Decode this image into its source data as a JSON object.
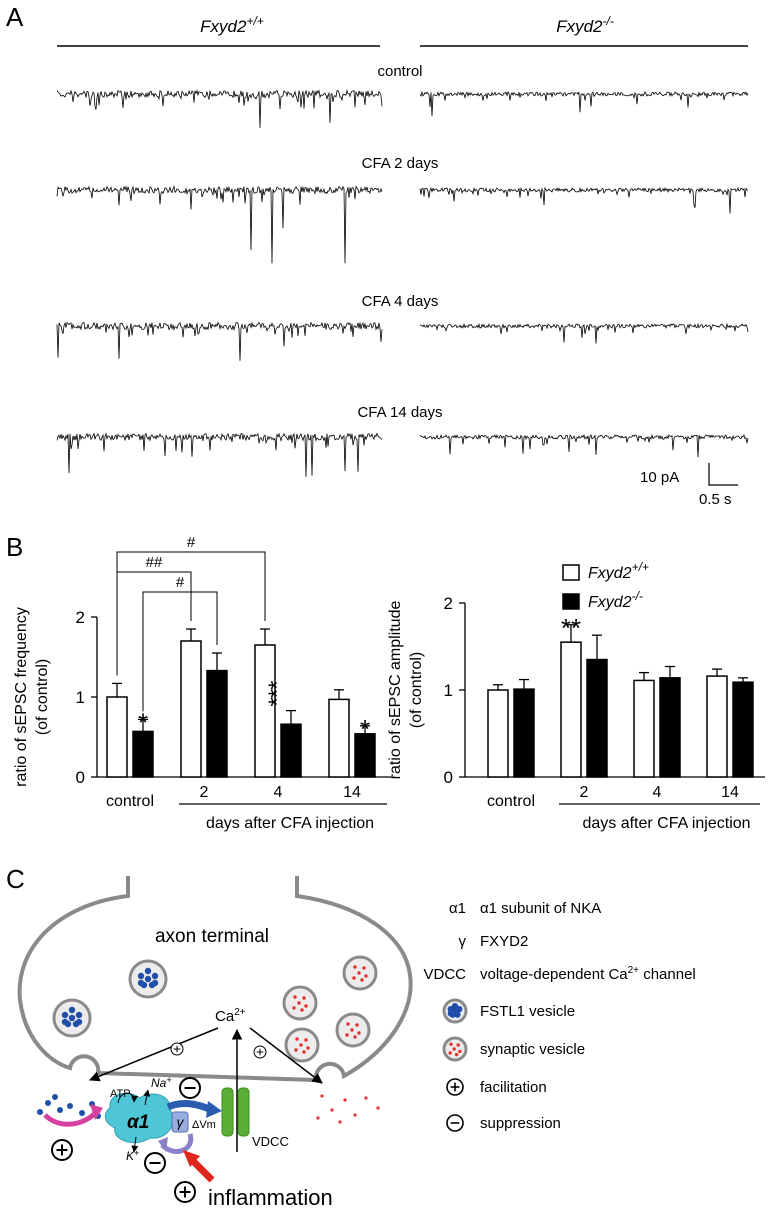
{
  "panel_a": {
    "label": "A",
    "genotypes": [
      {
        "name": "Fxyd2",
        "superscript": "+/+"
      },
      {
        "name": "Fxyd2",
        "superscript": "-/-"
      }
    ],
    "conditions": [
      "control",
      "CFA 2 days",
      "CFA 4 days",
      "CFA 14 days"
    ],
    "scale_bar": {
      "current": "10 pA",
      "time": "0.5 s"
    }
  },
  "panel_b_label": "B",
  "chart_data": [
    {
      "type": "bar",
      "y_label": [
        "ratio of sEPSC frequency",
        "(of control)"
      ],
      "categories": [
        "control",
        "2",
        "4",
        "14"
      ],
      "x_label": "days after CFA injection",
      "ylim": [
        0,
        2
      ],
      "yticks": [
        0,
        1,
        2
      ],
      "series": [
        {
          "color": "#ffffff",
          "values": [
            1.0,
            1.7,
            1.65,
            0.97
          ],
          "errors": [
            0.17,
            0.15,
            0.2,
            0.12
          ]
        },
        {
          "color": "#000000",
          "values": [
            0.57,
            1.33,
            0.66,
            0.54
          ],
          "errors": [
            0.15,
            0.22,
            0.17,
            0.1
          ],
          "significance": [
            "*",
            null,
            "***",
            "*"
          ]
        }
      ],
      "brackets": [
        {
          "label": "#",
          "from": [
            0,
            0
          ],
          "to": [
            0,
            2
          ]
        },
        {
          "label": "##",
          "from": [
            0,
            0
          ],
          "to": [
            0,
            1
          ]
        },
        {
          "label": "#",
          "from": [
            1,
            0
          ],
          "to": [
            1,
            1
          ]
        }
      ]
    },
    {
      "type": "bar",
      "y_label": [
        "ratio of sEPSC amplitude",
        "(of control)"
      ],
      "categories": [
        "control",
        "2",
        "4",
        "14"
      ],
      "x_label": "days after CFA injection",
      "ylim": [
        0,
        2
      ],
      "yticks": [
        0,
        1,
        2
      ],
      "series": [
        {
          "name": "Fxyd2",
          "superscript": "+/+",
          "color": "#ffffff",
          "values": [
            1.0,
            1.55,
            1.11,
            1.16
          ],
          "errors": [
            0.06,
            0.2,
            0.09,
            0.08
          ],
          "significance": [
            null,
            "**",
            null,
            null
          ]
        },
        {
          "name": "Fxyd2",
          "superscript": "-/-",
          "color": "#000000",
          "values": [
            1.01,
            1.35,
            1.14,
            1.09
          ],
          "errors": [
            0.11,
            0.28,
            0.13,
            0.05
          ]
        }
      ]
    }
  ],
  "panel_c": {
    "label": "C",
    "diagram": {
      "compartment": "axon terminal",
      "ion": {
        "text": "Ca",
        "superscript": "2+"
      },
      "pump": "α1",
      "atp": "ATP",
      "sodium": {
        "text": "Na",
        "superscript": "+"
      },
      "potassium": {
        "text": "K",
        "superscript": "+"
      },
      "subunit": "γ",
      "potential": "ΔVm",
      "channel": "VDCC",
      "stimulus": "inflammation"
    },
    "legend": [
      {
        "symbol": "α1",
        "text": "α1 subunit of NKA"
      },
      {
        "symbol": "γ",
        "text": "FXYD2"
      },
      {
        "symbol": "VDCC",
        "text": "voltage-dependent Ca",
        "superscript": "2+",
        "text_after": " channel"
      },
      {
        "text": "FSTL1 vesicle"
      },
      {
        "text": "synaptic vesicle"
      },
      {
        "text": "facilitation"
      },
      {
        "text": "suppression"
      }
    ]
  }
}
